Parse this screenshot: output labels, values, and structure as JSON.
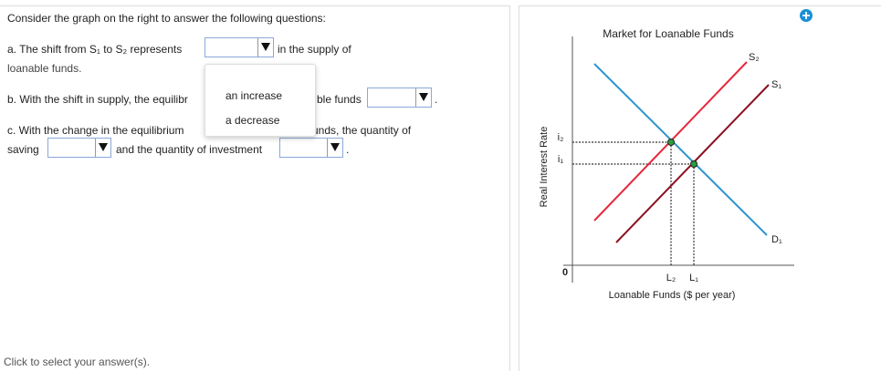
{
  "question": {
    "intro": "Consider the graph on the right to answer the following questions:",
    "part_a": {
      "before": "a. The shift from S₁ to S₂ represents",
      "after": "in the supply of",
      "line2": "loanable funds."
    },
    "part_b": {
      "before": "b. With the shift in supply, the equilibr",
      "after": "ble funds"
    },
    "part_c": {
      "before": "c. With the change in the equilibrium",
      "after": "unds, the quantity of",
      "line2_start": "saving",
      "line2_middle": "and the quantity of investment"
    },
    "dropdown_options": [
      "an increase",
      "a decrease"
    ],
    "footer": "Click to select your answer(s)."
  },
  "graph": {
    "title": "Market for Loanable Funds",
    "y_axis_label": "Real Interest Rate",
    "x_axis_label": "Loanable Funds ($ per year)",
    "origin": "0",
    "curves": [
      "S₂",
      "S₁",
      "D₁"
    ],
    "rates": [
      "i₂",
      "i₁"
    ],
    "quantities": [
      "L₂",
      "L₁"
    ]
  }
}
